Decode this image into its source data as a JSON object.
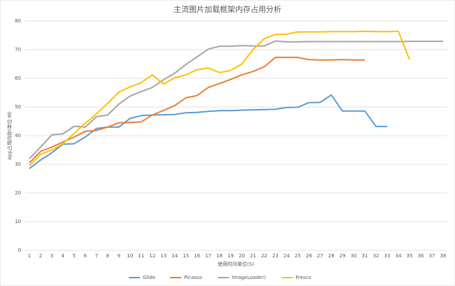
{
  "chart_data": {
    "type": "line",
    "title": "主流图片加载框架内存占用分析",
    "x_label": "使用时间单位(S)",
    "y_label": "App占用内存(单位:M)",
    "categories": [
      "1",
      "2",
      "3",
      "4",
      "5",
      "6",
      "7",
      "8",
      "9",
      "10",
      "11",
      "12",
      "13",
      "14",
      "15",
      "16",
      "17",
      "18",
      "19",
      "20",
      "21",
      "22",
      "23",
      "24",
      "25",
      "26",
      "27",
      "28",
      "29",
      "30",
      "31",
      "32",
      "33",
      "34",
      "35",
      "36",
      "37",
      "38"
    ],
    "ylim": [
      0,
      80
    ],
    "yticks": [
      0,
      10,
      20,
      30,
      40,
      50,
      60,
      70,
      80
    ],
    "grid": true,
    "legend": "bottom",
    "series": [
      {
        "name": "Glide",
        "color": "#5b9bd5",
        "values": [
          28.5,
          31.5,
          34,
          37,
          37.2,
          39.5,
          42.5,
          43,
          43,
          46,
          47,
          47.2,
          47.3,
          47.4,
          48,
          48.1,
          48.5,
          48.7,
          48.7,
          48.9,
          49,
          49.1,
          49.2,
          49.8,
          49.9,
          51.5,
          51.6,
          54.2,
          48.6,
          48.6,
          48.6,
          43.2,
          43.2,
          null,
          null,
          null,
          null,
          null
        ]
      },
      {
        "name": "Picasso",
        "color": "#ed7d31",
        "values": [
          30.5,
          34.5,
          36,
          37.8,
          39.5,
          41.5,
          41.8,
          43,
          44.5,
          44.6,
          44.8,
          47.2,
          48.8,
          50.5,
          53.2,
          54,
          56.8,
          58.2,
          59.6,
          61.2,
          62.4,
          64,
          67.3,
          67.3,
          67.3,
          66.5,
          66.4,
          66.4,
          66.5,
          66.4,
          66.4,
          null,
          null,
          null,
          null,
          null,
          null,
          null
        ]
      },
      {
        "name": "ImageLoader)",
        "color": "#a5a5a5",
        "values": [
          32,
          36,
          40.3,
          40.6,
          43.3,
          43,
          46.6,
          47.2,
          51,
          53.8,
          55.4,
          56.8,
          59.5,
          61.8,
          64.8,
          67.5,
          70.2,
          71.2,
          71.2,
          71.4,
          71.3,
          71.3,
          73,
          72.7,
          72.7,
          72.8,
          72.8,
          72.8,
          72.8,
          72.8,
          72.8,
          72.8,
          72.8,
          72.8,
          72.9,
          72.9,
          72.9,
          72.9
        ]
      },
      {
        "name": "Fresco",
        "color": "#ffc000",
        "values": [
          29.5,
          33.5,
          35,
          37.2,
          40.8,
          44.3,
          47.6,
          51.3,
          55.2,
          57,
          58.5,
          61.2,
          58,
          60.2,
          61.2,
          63,
          63.6,
          62,
          62.7,
          65,
          70,
          73.8,
          75.3,
          75.4,
          76.2,
          76.2,
          76.2,
          76.3,
          76.3,
          76.3,
          76.4,
          76.3,
          76.3,
          76.4,
          66.5,
          null,
          null,
          null
        ]
      }
    ]
  }
}
